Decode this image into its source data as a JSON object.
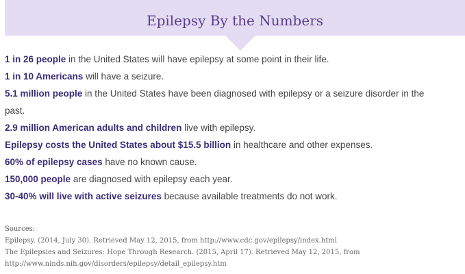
{
  "header": {
    "title": "Epilepsy By the Numbers",
    "background_color": "#e4dcf2",
    "title_color": "#5b3d8d"
  },
  "facts": [
    {
      "bold": "1 in 26 people",
      "rest": " in the United States will have epilepsy at some point in their life."
    },
    {
      "bold": "1 in 10 Americans",
      "rest": " will have a seizure."
    },
    {
      "bold": "5.1 million people",
      "rest": " in the United States have been diagnosed with epilepsy or a seizure disorder in the"
    },
    {
      "bold": "",
      "rest": "past."
    },
    {
      "bold": "2.9 million American adults and children",
      "rest": " live with epilepsy."
    },
    {
      "bold": "Epilepsy costs the United States about $15.5 billion",
      "rest": " in healthcare and other expenses."
    },
    {
      "bold": "60% of epilepsy cases",
      "rest": " have no known cause."
    },
    {
      "bold": "150,000 people",
      "rest": " are diagnosed with epilepsy each year."
    },
    {
      "bold": "30-40% will live with active seizures",
      "rest": " because available treatments do not work."
    }
  ],
  "sources": {
    "label": "Sources:",
    "lines": [
      "Epilepsy. (2014, July 30). Retrieved May 12, 2015, from http://www.cdc.gov/epilepsy/index.html",
      "The Epilepsies and Seizures: Hope Through Research. (2015, April 17). Retrieved May 12, 2015, from",
      "http://www.ninds.nih.gov/disorders/epilepsy/detail_epilepsy.htm"
    ]
  },
  "colors": {
    "bold_text": "#3b2c78",
    "body_text": "#444444"
  }
}
